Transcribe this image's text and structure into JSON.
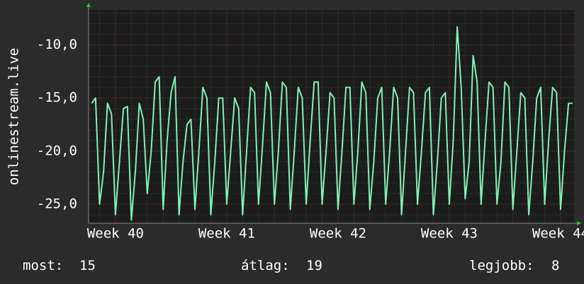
{
  "chart_data": {
    "type": "line",
    "y_label": "onlinestream.live",
    "xlim": [
      -1.69,
      28.85
    ],
    "ylim": [
      -26.8,
      -6.7
    ],
    "xticks": [
      {
        "value": 0,
        "label": "Week 40"
      },
      {
        "value": 7,
        "label": "Week 41"
      },
      {
        "value": 14,
        "label": "Week 42"
      },
      {
        "value": 21,
        "label": "Week 43"
      },
      {
        "value": 28,
        "label": "Week 44"
      }
    ],
    "yticks": [
      {
        "value": -25,
        "label": "-25,0"
      },
      {
        "value": -20,
        "label": "-20,0"
      },
      {
        "value": -15,
        "label": "-15,0"
      },
      {
        "value": -10,
        "label": "-10,0"
      }
    ],
    "grid": true,
    "x": [
      -1.5,
      -1.25,
      -1,
      -0.75,
      -0.5,
      -0.25,
      0,
      0.25,
      0.5,
      0.75,
      1,
      1.25,
      1.5,
      1.75,
      2,
      2.25,
      2.5,
      2.75,
      3,
      3.25,
      3.5,
      3.75,
      4,
      4.25,
      4.5,
      4.75,
      5,
      5.25,
      5.5,
      5.75,
      6,
      6.25,
      6.5,
      6.75,
      7,
      7.25,
      7.5,
      7.75,
      8,
      8.25,
      8.5,
      8.75,
      9,
      9.25,
      9.5,
      9.75,
      10,
      10.25,
      10.5,
      10.75,
      11,
      11.25,
      11.5,
      11.75,
      12,
      12.25,
      12.5,
      12.75,
      13,
      13.25,
      13.5,
      13.75,
      14,
      14.25,
      14.5,
      14.75,
      15,
      15.25,
      15.5,
      15.75,
      16,
      16.25,
      16.5,
      16.75,
      17,
      17.25,
      17.5,
      17.75,
      18,
      18.25,
      18.5,
      18.75,
      19,
      19.25,
      19.5,
      19.75,
      20,
      20.25,
      20.5,
      20.75,
      21,
      21.25,
      21.5,
      21.75,
      22,
      22.25,
      22.5,
      22.75,
      23,
      23.25,
      23.5,
      23.75,
      24,
      24.25,
      24.5,
      24.75,
      25,
      25.25,
      25.5,
      25.75,
      26,
      26.25,
      26.5,
      26.75,
      27,
      27.25,
      27.5,
      27.75,
      28,
      28.25,
      28.5,
      28.75
    ],
    "series": [
      {
        "color": "#80f0b8",
        "values": [
          -15.5,
          -15,
          -25,
          -22,
          -15.5,
          -16.5,
          -26,
          -21,
          -16,
          -15.8,
          -26.5,
          -22,
          -15.5,
          -17,
          -24,
          -20,
          -13.5,
          -13,
          -25.5,
          -19,
          -14.5,
          -13,
          -26,
          -21,
          -17.5,
          -17,
          -25.5,
          -20,
          -14,
          -15,
          -26,
          -21,
          -15,
          -15,
          -25,
          -20,
          -15,
          -16,
          -26,
          -20,
          -14,
          -14.5,
          -25,
          -19.5,
          -13.5,
          -14.5,
          -25,
          -20,
          -13.5,
          -14,
          -25.5,
          -20,
          -14,
          -15,
          -25,
          -19,
          -13.5,
          -13.5,
          -25,
          -20,
          -14.5,
          -15,
          -25.5,
          -20,
          -14,
          -14,
          -25,
          -20,
          -13.5,
          -14.5,
          -25.5,
          -21,
          -15,
          -14,
          -25,
          -20,
          -14,
          -15,
          -26,
          -20,
          -14,
          -14.5,
          -25,
          -20,
          -14.5,
          -14,
          -26,
          -21,
          -15,
          -14.5,
          -25,
          -19,
          -8.3,
          -14,
          -24.5,
          -21,
          -11,
          -13.5,
          -25,
          -19,
          -13.5,
          -14,
          -25,
          -21,
          -13.5,
          -14,
          -25.5,
          -20,
          -14.5,
          -15,
          -26,
          -21,
          -15,
          -14,
          -25,
          -19,
          -14,
          -14.5,
          -25.5,
          -20,
          -15.5,
          -15.5
        ]
      }
    ],
    "footer": [
      {
        "label": "most:",
        "value": 15
      },
      {
        "label": "átlag:",
        "value": 19
      },
      {
        "label": "legjobb:",
        "value": 8
      }
    ]
  }
}
